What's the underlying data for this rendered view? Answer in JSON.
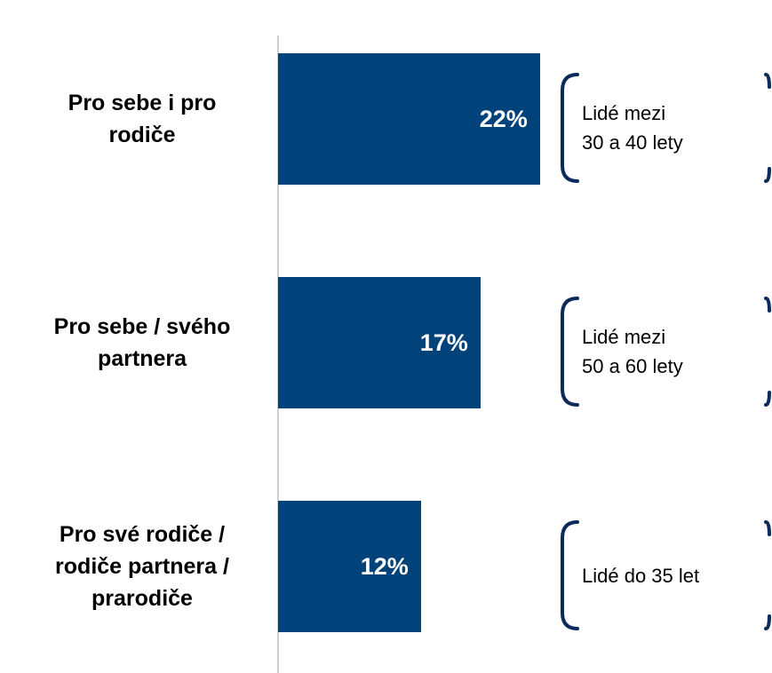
{
  "chart_data": {
    "type": "bar",
    "orientation": "horizontal",
    "categories": [
      "Pro sebe i pro\nrodiče",
      "Pro sebe / svého\npartnera",
      "Pro své rodiče /\nrodiče partnera /\nprarodiče"
    ],
    "values": [
      22,
      17,
      12
    ],
    "value_labels": [
      "22%",
      "17%",
      "12%"
    ],
    "color": "#02427a",
    "annotations": [
      "Lidé mezi\n30 a 40 lety",
      "Lidé mezi\n50 a 60 lety",
      "Lidé do 35 let"
    ]
  }
}
